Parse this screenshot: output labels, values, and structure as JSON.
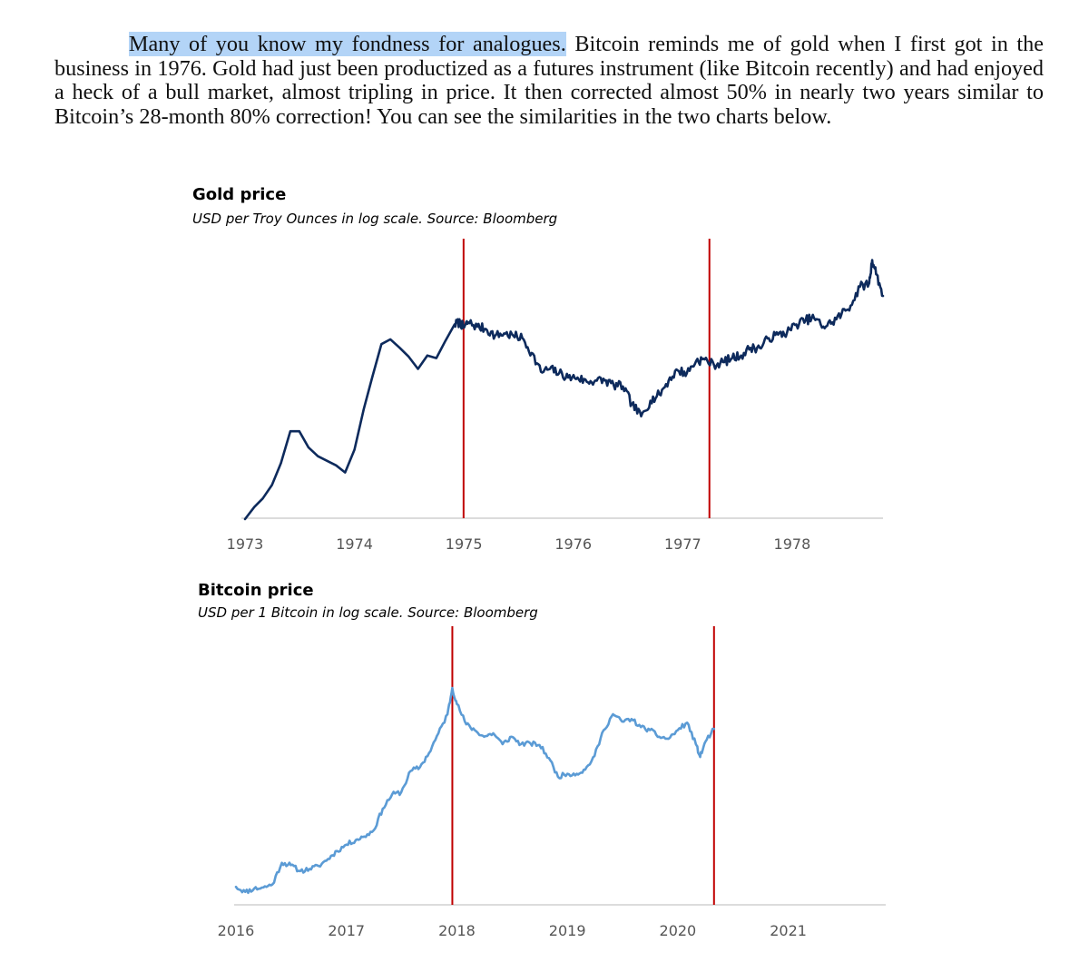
{
  "document": {
    "paragraph_highlighted": "Many of you know my fondness for analogues.",
    "paragraph_rest": " Bitcoin reminds me of gold when I first got in the business in 1976. Gold had just been productized as a futures instrument (like Bitcoin recently) and had enjoyed a heck of a bull market, almost tripling in price. It then corrected almost 50% in nearly two years similar to Bitcoin’s 28-month 80% correction! You can see the similarities in the two charts below."
  },
  "colors": {
    "gold_line": "#0d2a5c",
    "bitcoin_line": "#5b9bd5",
    "marker_line": "#c00000",
    "axis": "#d0d0d0",
    "highlight": "#b3d4f7"
  },
  "chart_data": [
    {
      "type": "line",
      "title": "Gold price",
      "subtitle": "USD per Troy Ounces in log scale. Source: Bloomberg",
      "xlabel": "",
      "ylabel": "",
      "y_scale": "log",
      "grid": false,
      "xlim": [
        "1973-01-01",
        "1978-10-31"
      ],
      "ylim": [
        60,
        260
      ],
      "x_ticks": [
        "1973",
        "1974",
        "1975",
        "1976",
        "1977",
        "1978"
      ],
      "vertical_markers": [
        "1974-12-31",
        "1977-03-31"
      ],
      "series": [
        {
          "points": [
            [
              "1973-01-01",
              60
            ],
            [
              "1973-02-01",
              64
            ],
            [
              "1973-03-01",
              67
            ],
            [
              "1973-04-01",
              72
            ],
            [
              "1973-05-01",
              81
            ],
            [
              "1973-06-01",
              96
            ],
            [
              "1973-07-01",
              96
            ],
            [
              "1973-08-01",
              88
            ],
            [
              "1973-09-01",
              84
            ],
            [
              "1973-10-01",
              82
            ],
            [
              "1973-11-01",
              80
            ],
            [
              "1973-12-01",
              77
            ],
            [
              "1974-01-01",
              87
            ],
            [
              "1974-02-01",
              108
            ],
            [
              "1974-03-01",
              128
            ],
            [
              "1974-04-01",
              153
            ],
            [
              "1974-05-01",
              157
            ],
            [
              "1974-06-01",
              150
            ],
            [
              "1974-07-01",
              143
            ],
            [
              "1974-08-01",
              134
            ],
            [
              "1974-09-01",
              144
            ],
            [
              "1974-10-01",
              142
            ],
            [
              "1974-11-01",
              156
            ],
            [
              "1974-12-01",
              170
            ],
            [
              "1974-12-20",
              172
            ],
            [
              "1974-12-31",
              167
            ],
            [
              "1975-01-15",
              172
            ],
            [
              "1975-02-15",
              168
            ],
            [
              "1975-03-15",
              166
            ],
            [
              "1975-04-15",
              160
            ],
            [
              "1975-05-15",
              162
            ],
            [
              "1975-06-15",
              160
            ],
            [
              "1975-07-15",
              158
            ],
            [
              "1975-08-15",
              146
            ],
            [
              "1975-09-15",
              132
            ],
            [
              "1975-10-15",
              134
            ],
            [
              "1975-11-15",
              131
            ],
            [
              "1975-12-15",
              128
            ],
            [
              "1976-01-15",
              128
            ],
            [
              "1976-02-15",
              125
            ],
            [
              "1976-03-15",
              126
            ],
            [
              "1976-04-15",
              126
            ],
            [
              "1976-05-15",
              123
            ],
            [
              "1976-06-15",
              122
            ],
            [
              "1976-07-15",
              111
            ],
            [
              "1976-08-15",
              104
            ],
            [
              "1976-09-15",
              113
            ],
            [
              "1976-10-15",
              117
            ],
            [
              "1976-11-15",
              126
            ],
            [
              "1976-12-15",
              133
            ],
            [
              "1977-01-15",
              131
            ],
            [
              "1977-02-15",
              140
            ],
            [
              "1977-03-15",
              141
            ],
            [
              "1977-04-15",
              137
            ],
            [
              "1977-05-15",
              139
            ],
            [
              "1977-06-15",
              142
            ],
            [
              "1977-07-15",
              144
            ],
            [
              "1977-08-15",
              150
            ],
            [
              "1977-09-15",
              150
            ],
            [
              "1977-10-15",
              158
            ],
            [
              "1977-11-15",
              161
            ],
            [
              "1977-12-15",
              163
            ],
            [
              "1978-01-15",
              170
            ],
            [
              "1978-02-15",
              174
            ],
            [
              "1978-03-15",
              176
            ],
            [
              "1978-04-15",
              168
            ],
            [
              "1978-05-15",
              172
            ],
            [
              "1978-06-15",
              180
            ],
            [
              "1978-07-15",
              188
            ],
            [
              "1978-08-15",
              208
            ],
            [
              "1978-09-15",
              212
            ],
            [
              "1978-09-25",
              240
            ],
            [
              "1978-10-10",
              222
            ],
            [
              "1978-10-31",
              198
            ]
          ]
        }
      ]
    },
    {
      "type": "line",
      "title": "Bitcoin price",
      "subtitle": "USD per 1 Bitcoin in log scale. Source: Bloomberg",
      "xlabel": "",
      "ylabel": "",
      "y_scale": "log",
      "grid": false,
      "xlim": [
        "2016-01-01",
        "2021-12-31"
      ],
      "ylim": [
        300,
        20000
      ],
      "x_ticks": [
        "2016",
        "2017",
        "2018",
        "2019",
        "2020",
        "2021"
      ],
      "vertical_markers": [
        "2017-12-17",
        "2020-04-30"
      ],
      "series": [
        {
          "points": [
            [
              "2016-01-01",
              430
            ],
            [
              "2016-02-01",
              390
            ],
            [
              "2016-03-01",
              415
            ],
            [
              "2016-04-01",
              425
            ],
            [
              "2016-05-01",
              450
            ],
            [
              "2016-06-01",
              680
            ],
            [
              "2016-07-01",
              650
            ],
            [
              "2016-08-01",
              580
            ],
            [
              "2016-09-01",
              605
            ],
            [
              "2016-10-01",
              640
            ],
            [
              "2016-11-01",
              730
            ],
            [
              "2016-12-01",
              850
            ],
            [
              "2017-01-01",
              960
            ],
            [
              "2017-02-01",
              1050
            ],
            [
              "2017-03-01",
              1120
            ],
            [
              "2017-04-01",
              1260
            ],
            [
              "2017-05-01",
              1900
            ],
            [
              "2017-06-01",
              2500
            ],
            [
              "2017-07-01",
              2600
            ],
            [
              "2017-08-01",
              3900
            ],
            [
              "2017-09-01",
              4200
            ],
            [
              "2017-10-01",
              5500
            ],
            [
              "2017-11-01",
              8000
            ],
            [
              "2017-12-01",
              11500
            ],
            [
              "2017-12-17",
              19000
            ],
            [
              "2018-01-01",
              14000
            ],
            [
              "2018-02-01",
              9500
            ],
            [
              "2018-03-01",
              8500
            ],
            [
              "2018-04-01",
              7500
            ],
            [
              "2018-05-01",
              8000
            ],
            [
              "2018-06-01",
              6500
            ],
            [
              "2018-07-01",
              7500
            ],
            [
              "2018-08-01",
              6500
            ],
            [
              "2018-09-01",
              6600
            ],
            [
              "2018-10-01",
              6400
            ],
            [
              "2018-11-01",
              5000
            ],
            [
              "2018-12-01",
              3500
            ],
            [
              "2019-01-01",
              3700
            ],
            [
              "2019-02-01",
              3700
            ],
            [
              "2019-03-01",
              4000
            ],
            [
              "2019-04-01",
              5200
            ],
            [
              "2019-05-01",
              8500
            ],
            [
              "2019-06-01",
              11500
            ],
            [
              "2019-07-01",
              10000
            ],
            [
              "2019-08-01",
              10500
            ],
            [
              "2019-09-01",
              9000
            ],
            [
              "2019-10-01",
              8500
            ],
            [
              "2019-11-01",
              7500
            ],
            [
              "2019-12-01",
              7200
            ],
            [
              "2020-01-01",
              8500
            ],
            [
              "2020-02-01",
              9800
            ],
            [
              "2020-03-01",
              6500
            ],
            [
              "2020-03-15",
              5100
            ],
            [
              "2020-04-01",
              6800
            ],
            [
              "2020-04-30",
              8700
            ]
          ]
        }
      ]
    }
  ]
}
